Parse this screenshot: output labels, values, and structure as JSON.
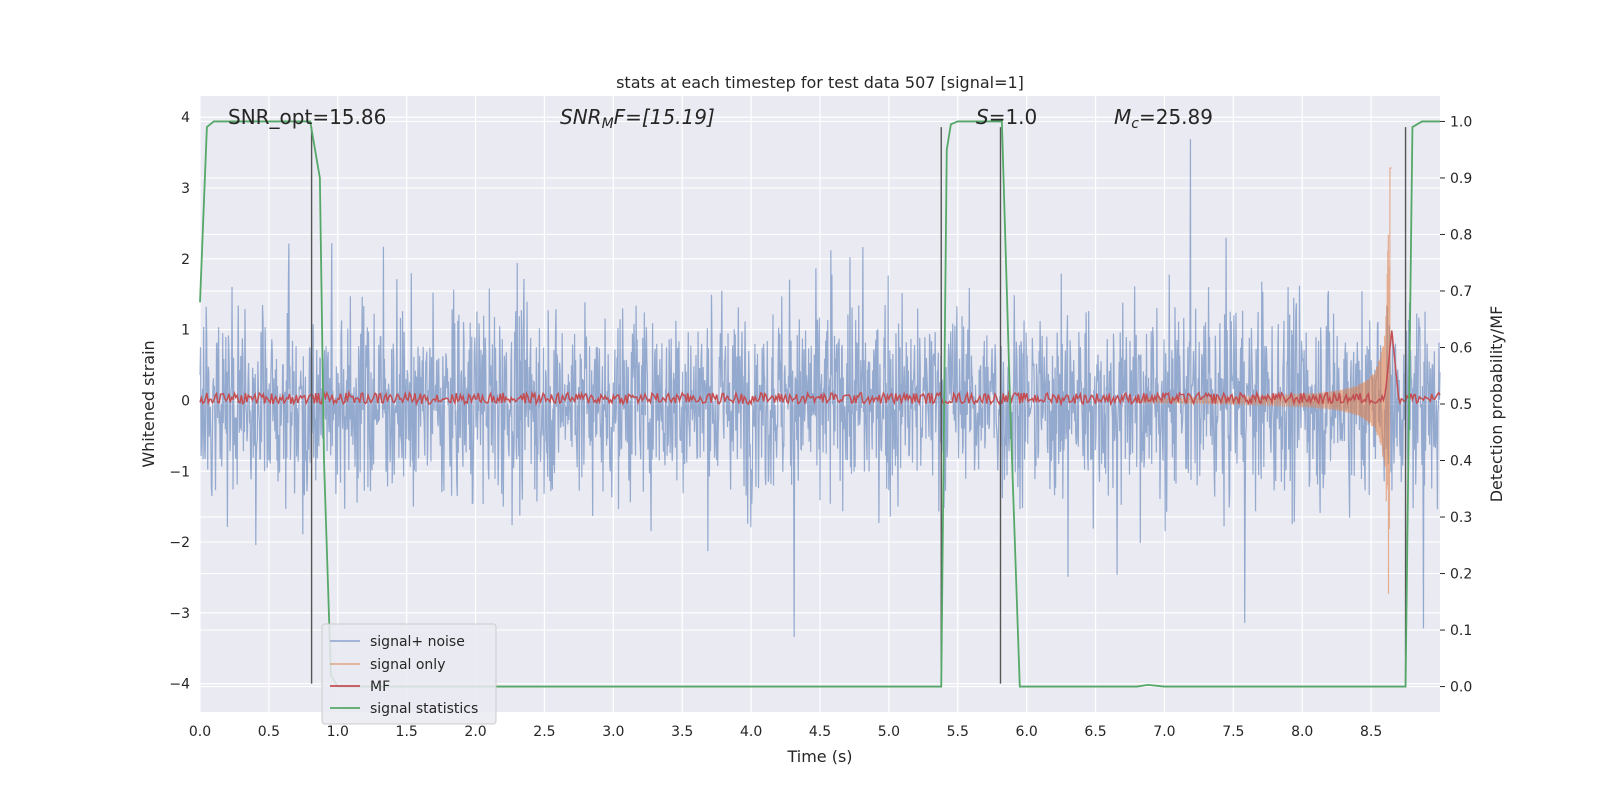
{
  "chart_data": {
    "type": "line",
    "title": "stats at each timestep for test data 507 [signal=1]",
    "xlabel": "Time (s)",
    "ylabel_left": "Whitened strain",
    "ylabel_right": "Detection probability/MF",
    "xlim": [
      0.0,
      9.0
    ],
    "ylim_left": [
      -4.4,
      4.3
    ],
    "ylim_right": [
      -0.045,
      1.045
    ],
    "x_ticks": [
      "0.0",
      "0.5",
      "1.0",
      "1.5",
      "2.0",
      "2.5",
      "3.0",
      "3.5",
      "4.0",
      "4.5",
      "5.0",
      "5.5",
      "6.0",
      "6.5",
      "7.0",
      "7.5",
      "8.0",
      "8.5"
    ],
    "y_left_ticks": [
      "−4",
      "−3",
      "−2",
      "−1",
      "0",
      "1",
      "2",
      "3",
      "4"
    ],
    "y_right_ticks": [
      "0.0",
      "0.1",
      "0.2",
      "0.3",
      "0.4",
      "0.5",
      "0.6",
      "0.7",
      "0.8",
      "0.9",
      "1.0"
    ],
    "grid": true,
    "legend_position": "lower-left",
    "annotations": {
      "snr_opt": "SNR_opt=15.86",
      "snr_mf_base": "SNR",
      "snr_mf_sub": "M",
      "snr_mf_rest": "F=[15.19]",
      "s_base": "S",
      "s_rest": "=1.0",
      "mc_base": "M",
      "mc_sub": "c",
      "mc_rest": "=25.89"
    },
    "series": [
      {
        "name": "signal+ noise",
        "axis": "left",
        "color": "#4c72b0",
        "description": "noise envelope approx ±1.5 with peaks to ±3.8",
        "x_range": [
          0.0,
          9.0
        ]
      },
      {
        "name": "signal only",
        "axis": "left",
        "color": "#dd8452",
        "chirp": {
          "start": 6.8,
          "peak_time": 8.63,
          "peak_amplitude": 3.3
        }
      },
      {
        "name": "MF",
        "axis": "right",
        "color": "#c44e52",
        "baseline": 0.51,
        "peak": {
          "x": 8.65,
          "y": 0.63
        }
      },
      {
        "name": "signal statistics",
        "axis": "right",
        "color": "#55a868",
        "points": [
          [
            0.0,
            0.68
          ],
          [
            0.05,
            0.99
          ],
          [
            0.1,
            1.0
          ],
          [
            0.8,
            1.0
          ],
          [
            0.87,
            0.9
          ],
          [
            0.9,
            0.4
          ],
          [
            0.95,
            0.02
          ],
          [
            1.0,
            0.0
          ],
          [
            5.38,
            0.0
          ],
          [
            5.42,
            0.95
          ],
          [
            5.45,
            0.995
          ],
          [
            5.5,
            1.0
          ],
          [
            5.82,
            1.0
          ],
          [
            5.88,
            0.5
          ],
          [
            5.95,
            0.0
          ],
          [
            6.8,
            0.0
          ],
          [
            6.88,
            0.003
          ],
          [
            7.0,
            0.0
          ],
          [
            8.75,
            0.0
          ],
          [
            8.8,
            0.99
          ],
          [
            8.87,
            1.0
          ],
          [
            9.0,
            1.0
          ]
        ]
      }
    ],
    "vertical_markers": [
      {
        "x": 0.81,
        "y_top": 0.99
      },
      {
        "x": 5.38,
        "y_top": 0.99
      },
      {
        "x": 5.81,
        "y_top": 0.99
      },
      {
        "x": 8.75,
        "y_top": 0.99
      }
    ]
  }
}
